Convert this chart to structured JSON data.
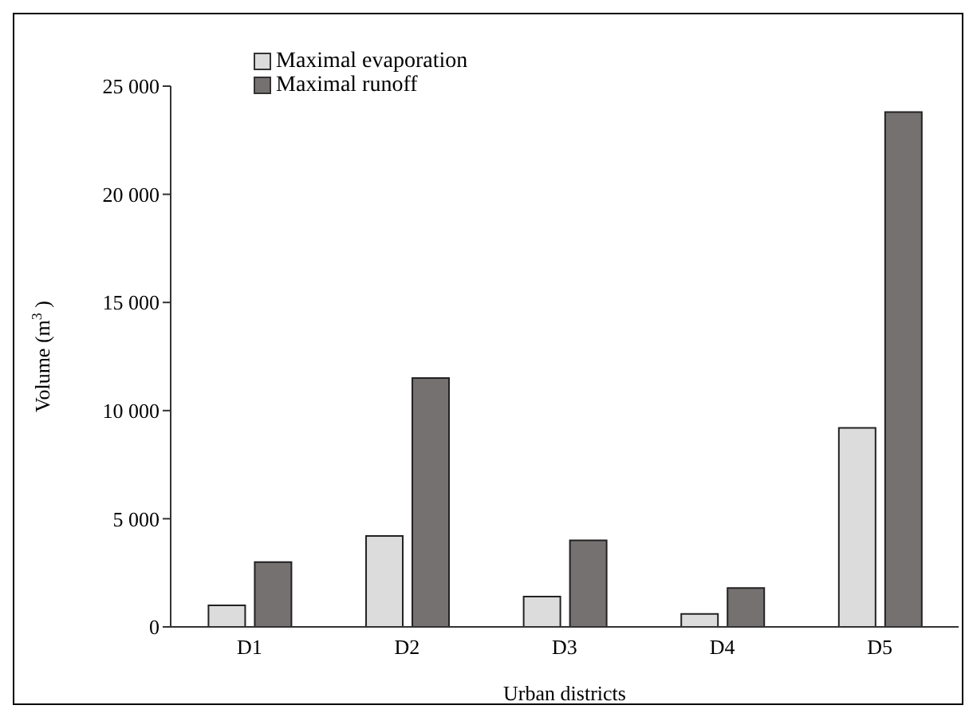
{
  "chart_data": {
    "type": "bar",
    "xlabel": "Urban districts",
    "ylabel": "Volume (m$^{3}$)",
    "categories": [
      "D1",
      "D2",
      "D3",
      "D4",
      "D5"
    ],
    "series": [
      {
        "name": "Maximal evaporation",
        "color": "#dcdcdc",
        "values": [
          1000,
          4200,
          1400,
          600,
          9200
        ]
      },
      {
        "name": "Maximal runoff",
        "color": "#767171",
        "values": [
          3000,
          11500,
          4000,
          1800,
          23800
        ]
      }
    ],
    "ylim": [
      0,
      25000
    ],
    "yticks": [
      {
        "value": 0,
        "label": "0"
      },
      {
        "value": 5000,
        "label": "5 000"
      },
      {
        "value": 10000,
        "label": "10 000"
      },
      {
        "value": 15000,
        "label": "15 000"
      },
      {
        "value": 20000,
        "label": "20 000"
      },
      {
        "value": 25000,
        "label": "25 000"
      }
    ],
    "grid": false,
    "legend": "top left"
  }
}
